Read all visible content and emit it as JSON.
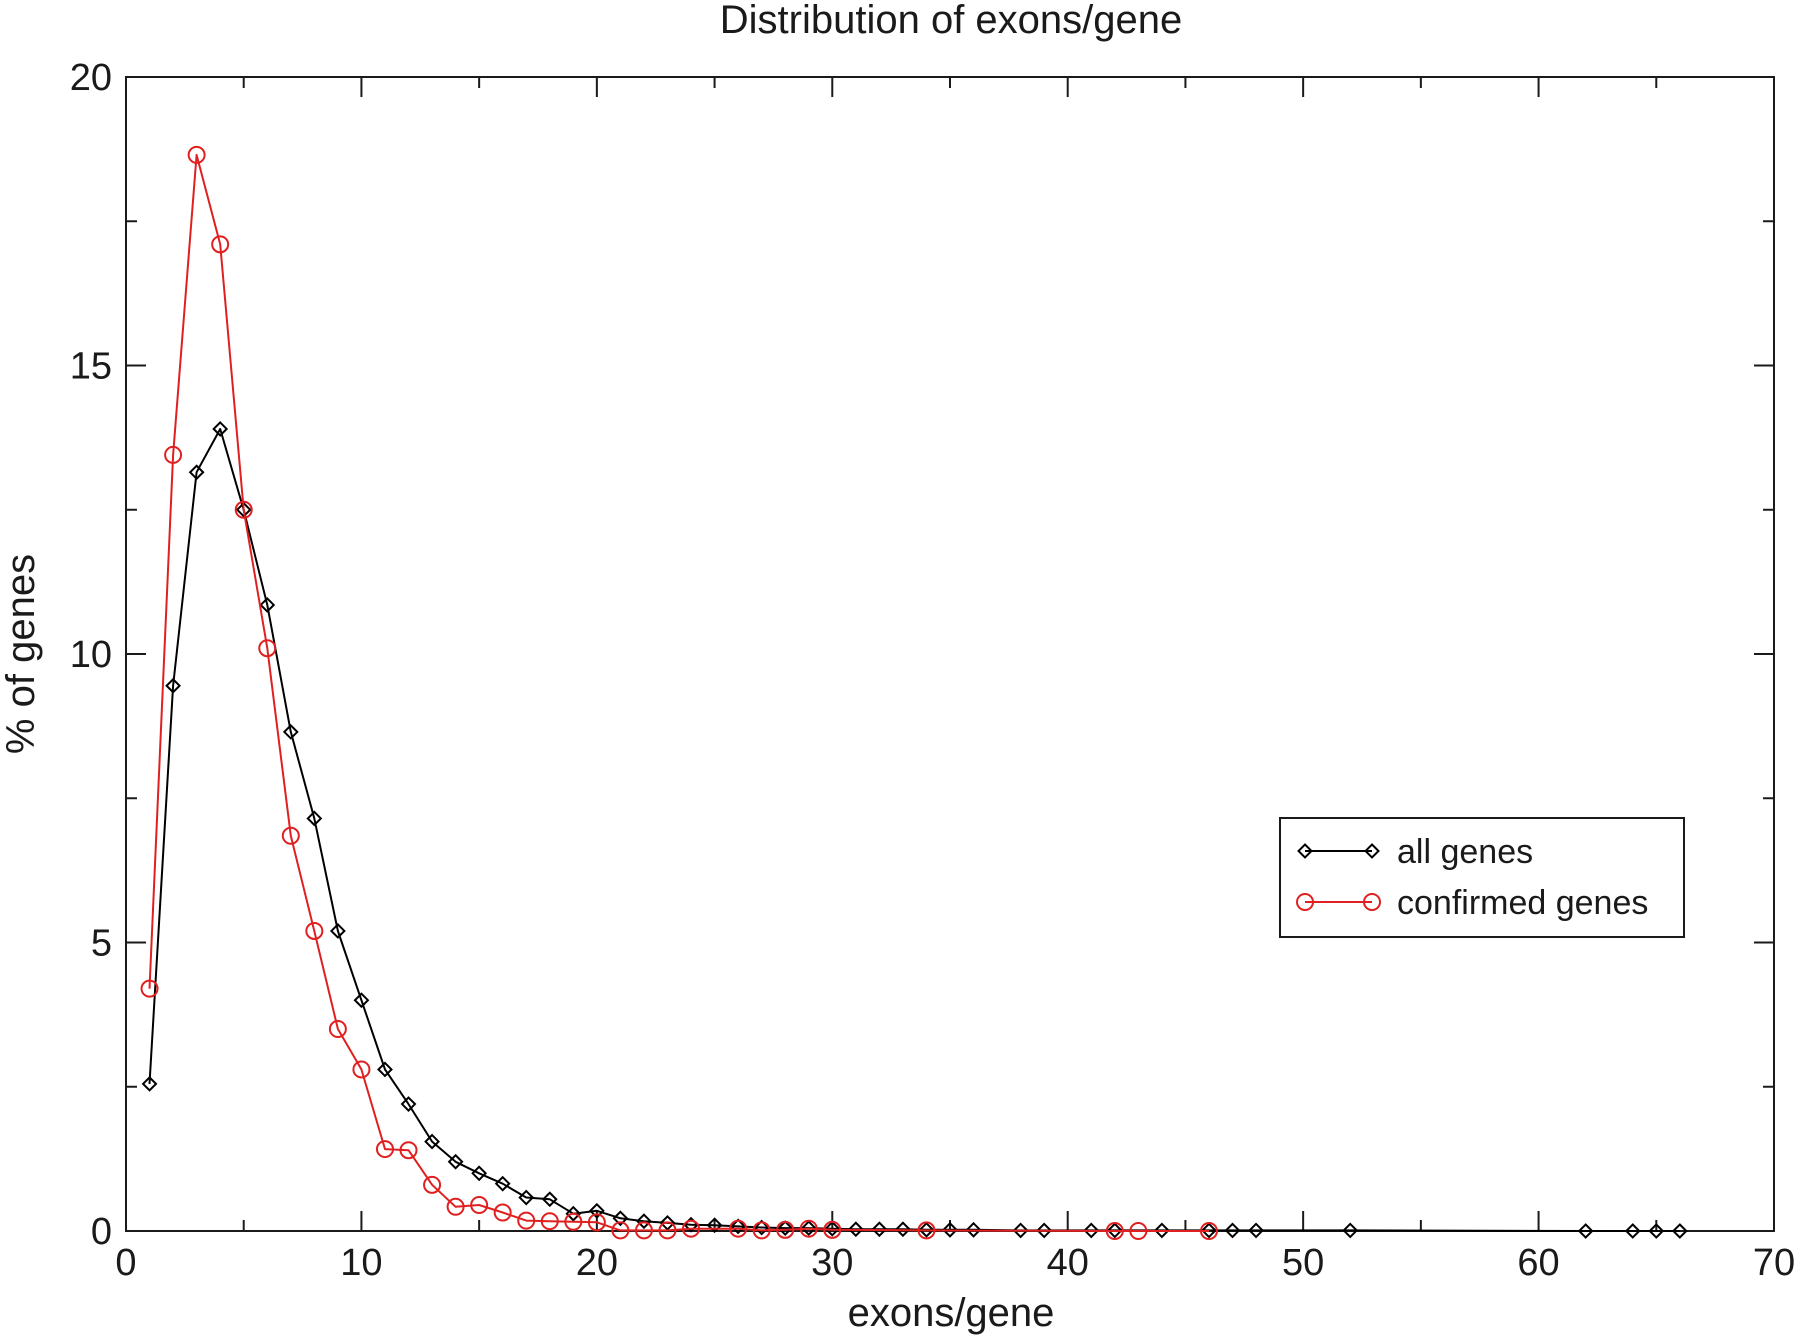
{
  "chart_data": {
    "type": "line",
    "title": "Distribution of exons/gene",
    "xlabel": "exons/gene",
    "ylabel": "% of genes",
    "xlim": [
      0,
      70
    ],
    "ylim": [
      0,
      20
    ],
    "xticks": [
      0,
      10,
      20,
      30,
      40,
      50,
      60,
      70
    ],
    "yticks": [
      0,
      5,
      10,
      15,
      20
    ],
    "xminor_step": 5,
    "yminor_step": 2.5,
    "grid": false,
    "legend_position": "right, middle",
    "series": [
      {
        "name": "all genes",
        "color": "#000000",
        "marker": "diamond",
        "points": [
          [
            1,
            2.55
          ],
          [
            2,
            9.45
          ],
          [
            3,
            13.15
          ],
          [
            4,
            13.9
          ],
          [
            5,
            12.5
          ],
          [
            6,
            10.85
          ],
          [
            7,
            8.65
          ],
          [
            8,
            7.15
          ],
          [
            9,
            5.2
          ],
          [
            10,
            4.0
          ],
          [
            11,
            2.8
          ],
          [
            12,
            2.2
          ],
          [
            13,
            1.55
          ],
          [
            14,
            1.2
          ],
          [
            15,
            1.0
          ],
          [
            16,
            0.82
          ],
          [
            17,
            0.58
          ],
          [
            18,
            0.55
          ],
          [
            19,
            0.3
          ],
          [
            20,
            0.35
          ],
          [
            21,
            0.22
          ],
          [
            22,
            0.17
          ],
          [
            23,
            0.14
          ],
          [
            24,
            0.11
          ],
          [
            25,
            0.1
          ],
          [
            26,
            0.08
          ],
          [
            27,
            0.06
          ],
          [
            28,
            0.05
          ],
          [
            29,
            0.05
          ],
          [
            30,
            0.04
          ],
          [
            31,
            0.03
          ],
          [
            32,
            0.03
          ],
          [
            33,
            0.03
          ],
          [
            34,
            0.02
          ],
          [
            35,
            0.02
          ],
          [
            36,
            0.02
          ],
          [
            38,
            0.01
          ],
          [
            39,
            0.01
          ],
          [
            41,
            0.01
          ],
          [
            42,
            0.01
          ],
          [
            44,
            0.01
          ],
          [
            46,
            0.01
          ],
          [
            47,
            0.01
          ],
          [
            48,
            0.01
          ],
          [
            52,
            0.01
          ],
          [
            62,
            0.0
          ],
          [
            64,
            0.0
          ],
          [
            65,
            0.0
          ],
          [
            66,
            0.0
          ]
        ]
      },
      {
        "name": "confirmed genes",
        "color": "#e02020",
        "marker": "circle",
        "points": [
          [
            1,
            4.2
          ],
          [
            2,
            13.45
          ],
          [
            3,
            18.65
          ],
          [
            4,
            17.1
          ],
          [
            5,
            12.5
          ],
          [
            6,
            10.1
          ],
          [
            7,
            6.85
          ],
          [
            8,
            5.2
          ],
          [
            9,
            3.5
          ],
          [
            10,
            2.8
          ],
          [
            11,
            1.42
          ],
          [
            12,
            1.4
          ],
          [
            13,
            0.8
          ],
          [
            14,
            0.42
          ],
          [
            15,
            0.45
          ],
          [
            16,
            0.32
          ],
          [
            17,
            0.18
          ],
          [
            18,
            0.17
          ],
          [
            19,
            0.16
          ],
          [
            20,
            0.15
          ],
          [
            21,
            0.01
          ],
          [
            22,
            0.01
          ],
          [
            23,
            0.01
          ],
          [
            24,
            0.04
          ],
          [
            26,
            0.04
          ],
          [
            27,
            0.01
          ],
          [
            28,
            0.02
          ],
          [
            29,
            0.04
          ],
          [
            30,
            0.02
          ],
          [
            34,
            0.01
          ],
          [
            42,
            0.0
          ],
          [
            43,
            0.0
          ],
          [
            46,
            0.0
          ]
        ]
      }
    ]
  }
}
